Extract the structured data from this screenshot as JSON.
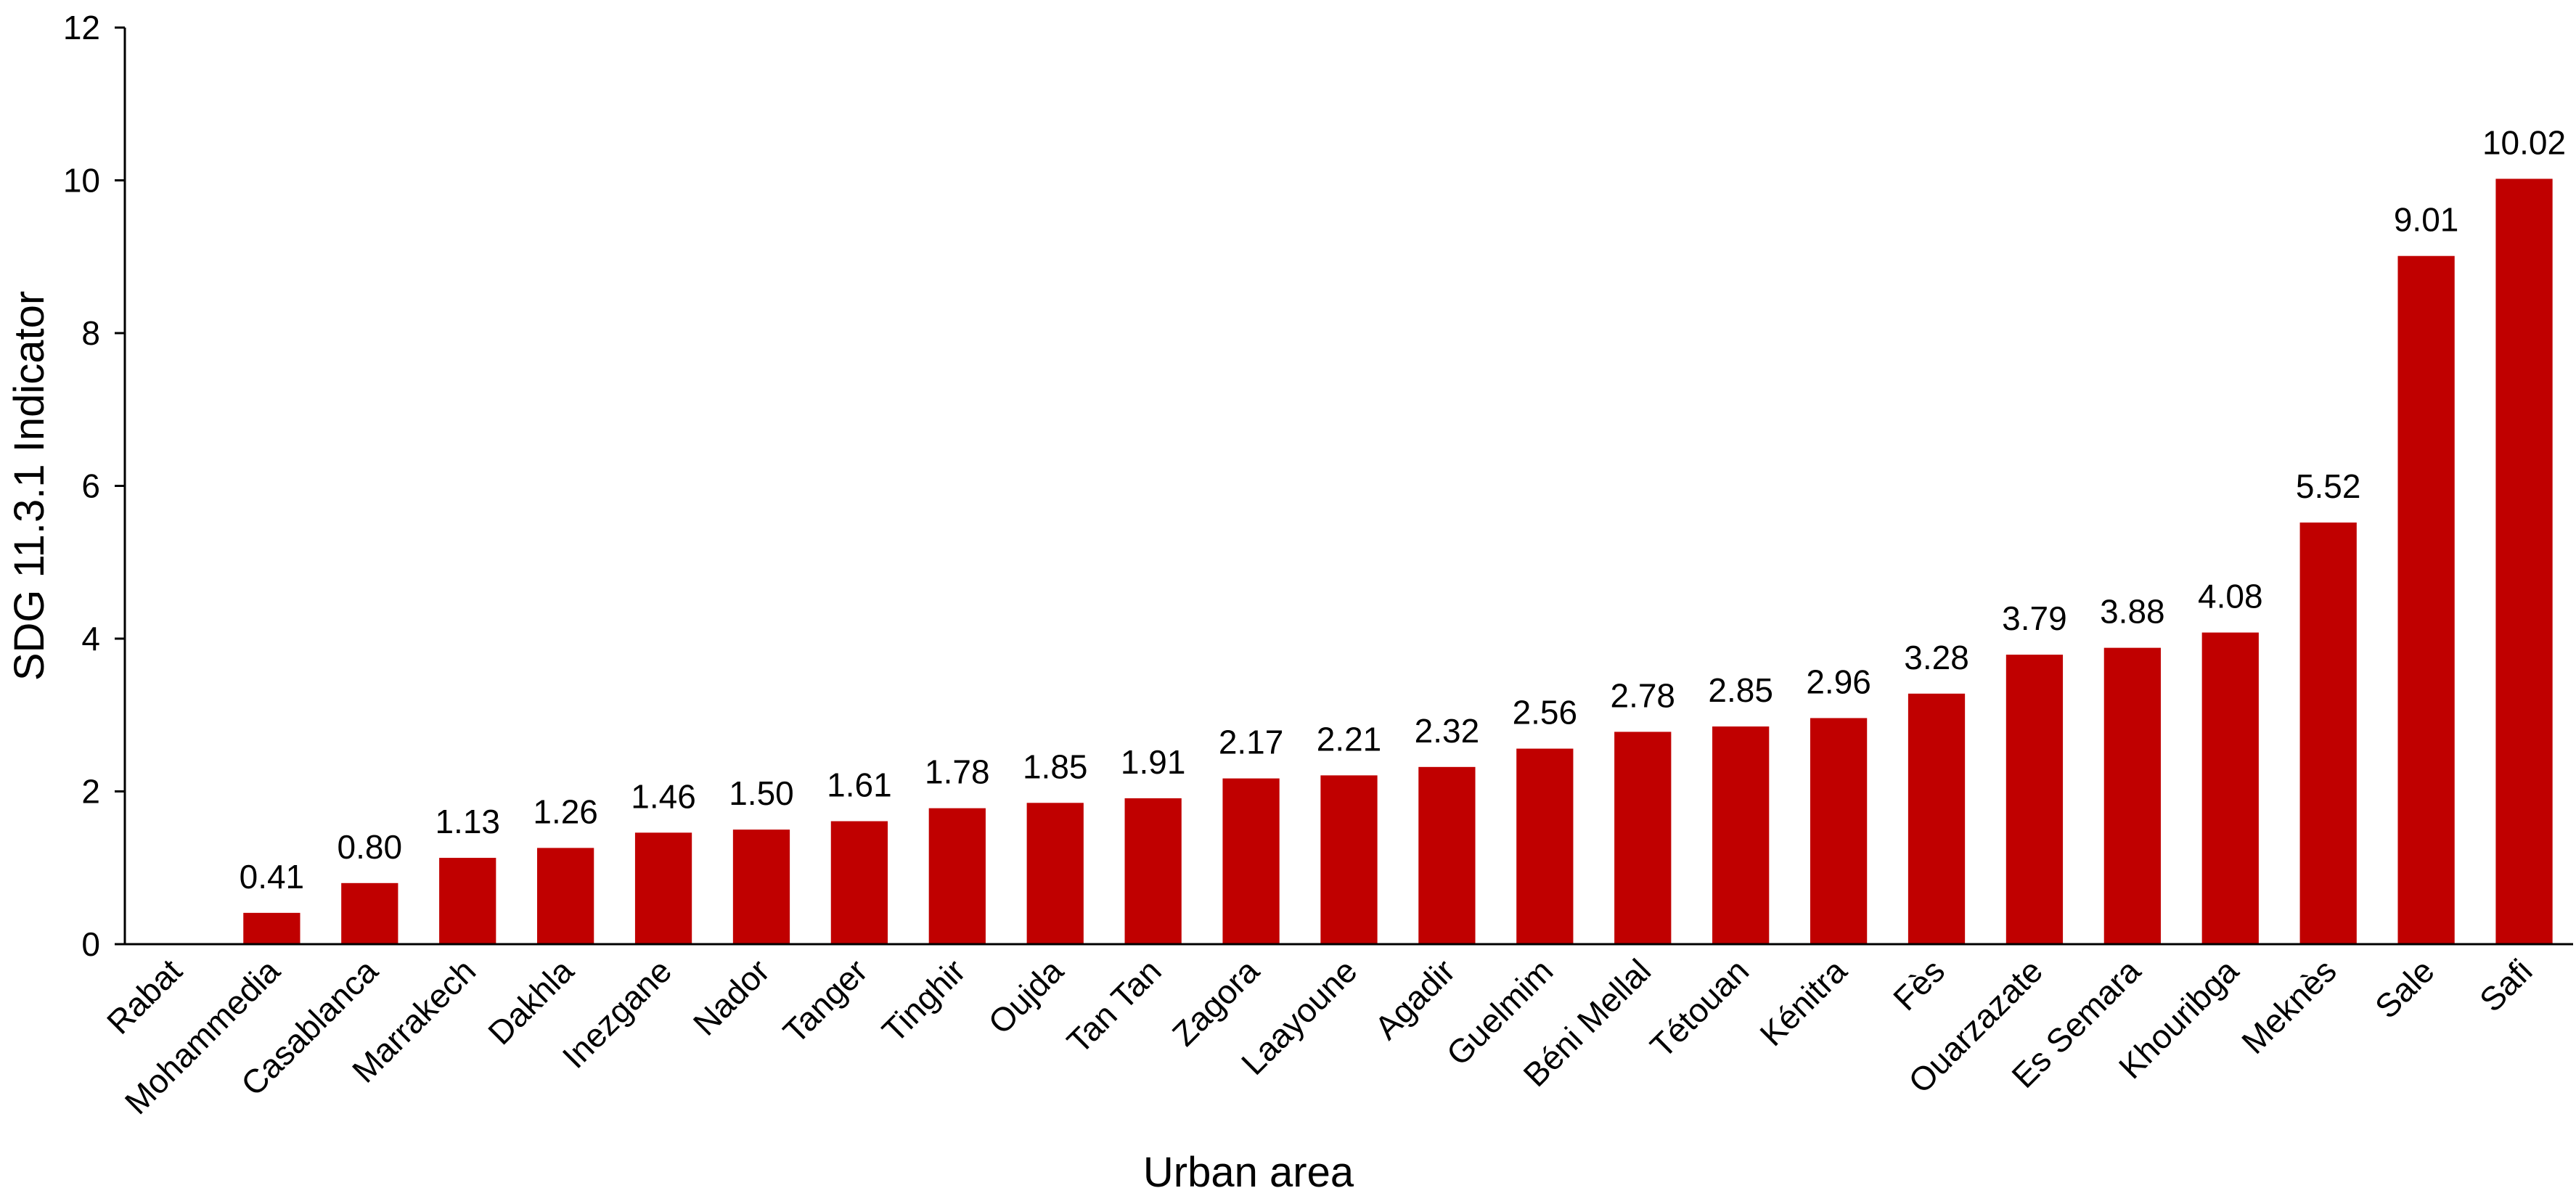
{
  "chart_data": {
    "type": "bar",
    "title": "",
    "xlabel": "Urban area",
    "ylabel": "SDG 11.3.1 Indicator",
    "ylim": [
      0,
      12
    ],
    "yticks": [
      "0",
      "2",
      "4",
      "6",
      "8",
      "10",
      "12"
    ],
    "grid": false,
    "bar_color": "#c00000",
    "categories": [
      "Rabat",
      "Mohammedia",
      "Casablanca",
      "Marrakech",
      "Dakhla",
      "Inezgane",
      "Nador",
      "Tanger",
      "Tinghir",
      "Oujda",
      "Tan Tan",
      "Zagora",
      "Laayoune",
      "Agadir",
      "Guelmim",
      "Béni Mellal",
      "Tétouan",
      "Kénitra",
      "Fès",
      "Ouarzazate",
      "Es Semara",
      "Khouribga",
      "Meknès",
      "Sale",
      "Safi"
    ],
    "values": [
      0,
      0.41,
      0.8,
      1.13,
      1.26,
      1.46,
      1.5,
      1.61,
      1.78,
      1.85,
      1.91,
      2.17,
      2.21,
      2.32,
      2.56,
      2.78,
      2.85,
      2.96,
      3.28,
      3.79,
      3.88,
      4.08,
      5.52,
      9.01,
      10.02
    ],
    "data_labels": [
      "",
      "0.41",
      "0.80",
      "1.13",
      "1.26",
      "1.46",
      "1.50",
      "1.61",
      "1.78",
      "1.85",
      "1.91",
      "2.17",
      "2.21",
      "2.32",
      "2.56",
      "2.78",
      "2.85",
      "2.96",
      "3.28",
      "3.79",
      "3.88",
      "4.08",
      "5.52",
      "9.01",
      "10.02"
    ]
  }
}
